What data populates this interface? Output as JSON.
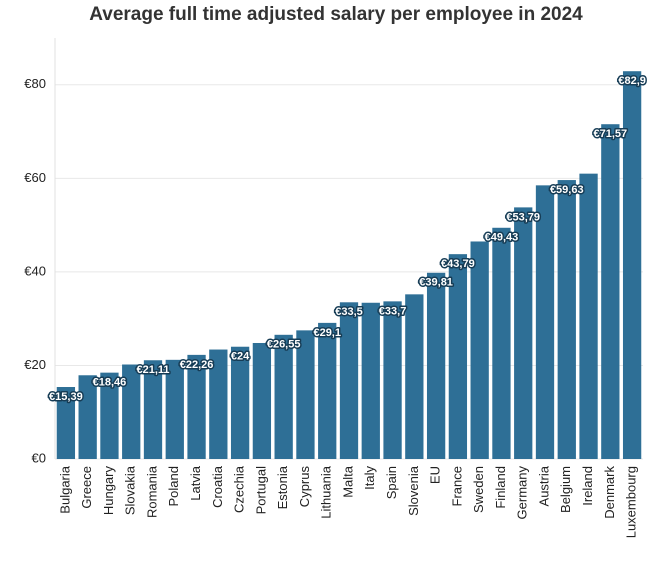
{
  "chart_data": {
    "type": "bar",
    "title": "Average full time adjusted salary per employee in 2024",
    "categories": [
      "Bulgaria",
      "Greece",
      "Hungary",
      "Slovakia",
      "Romania",
      "Poland",
      "Latvia",
      "Croatia",
      "Czechia",
      "Portugal",
      "Estonia",
      "Cyprus",
      "Lithuania",
      "Malta",
      "Italy",
      "Spain",
      "Slovenia",
      "EU",
      "France",
      "Sweden",
      "Finland",
      "Germany",
      "Austria",
      "Belgium",
      "Ireland",
      "Denmark",
      "Luxembourg"
    ],
    "values": [
      15.39,
      17.9,
      18.46,
      20.2,
      21.11,
      21.2,
      22.26,
      23.4,
      24,
      24.8,
      26.55,
      27.5,
      29.1,
      33.5,
      33.4,
      33.7,
      35.2,
      39.81,
      43.79,
      46.5,
      49.43,
      53.79,
      58.5,
      59.63,
      61,
      71.57,
      82.9
    ],
    "value_labels": [
      "€15,39",
      null,
      "€18,46",
      null,
      "€21,11",
      null,
      "€22,26",
      null,
      "€24",
      null,
      "€26,55",
      null,
      "€29,1",
      "€33,5",
      null,
      "€33,7",
      null,
      "€39,81",
      "€43,79",
      null,
      "€49,43",
      "€53,79",
      null,
      "€59,63",
      null,
      "€71,57",
      "€82,9"
    ],
    "color": "#2e6f96",
    "ylim": [
      0,
      90
    ],
    "yticks": [
      {
        "value": 0,
        "label": "€0"
      },
      {
        "value": 20,
        "label": "€20"
      },
      {
        "value": 40,
        "label": "€40"
      },
      {
        "value": 60,
        "label": "€60"
      },
      {
        "value": 80,
        "label": "€80"
      }
    ],
    "grid": true
  }
}
